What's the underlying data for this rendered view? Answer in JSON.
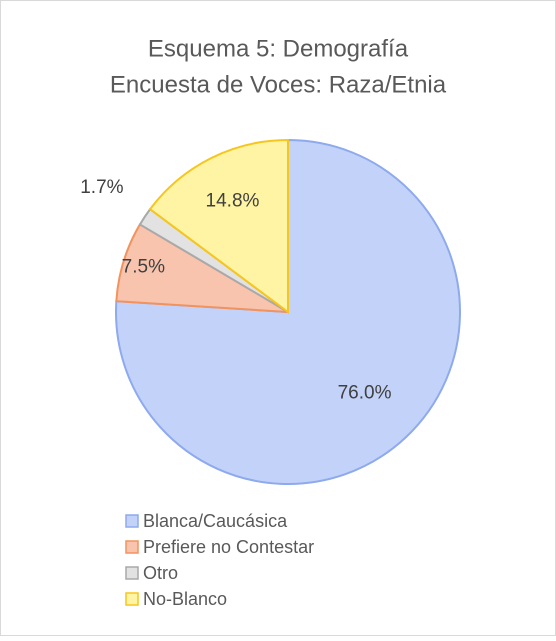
{
  "chart_data": {
    "type": "pie",
    "title": [
      "Esquema 5: Demografía",
      "Encuesta de Voces: Raza/Etnia"
    ],
    "categories": [
      "Blanca/Caucásica",
      "Prefiere no Contestar",
      "Otro",
      "No-Blanco"
    ],
    "values": [
      76.0,
      7.5,
      1.7,
      14.8
    ],
    "value_labels": [
      "76.0%",
      "7.5%",
      "1.7%",
      "14.8%"
    ],
    "colors": [
      "#c3d2f8",
      "#f8c4ae",
      "#e2e2e2",
      "#fff4a3"
    ],
    "edge_colors": [
      "#8eaaee",
      "#f2935e",
      "#a9a9a9",
      "#f6c61e"
    ],
    "legend": "bottom"
  }
}
